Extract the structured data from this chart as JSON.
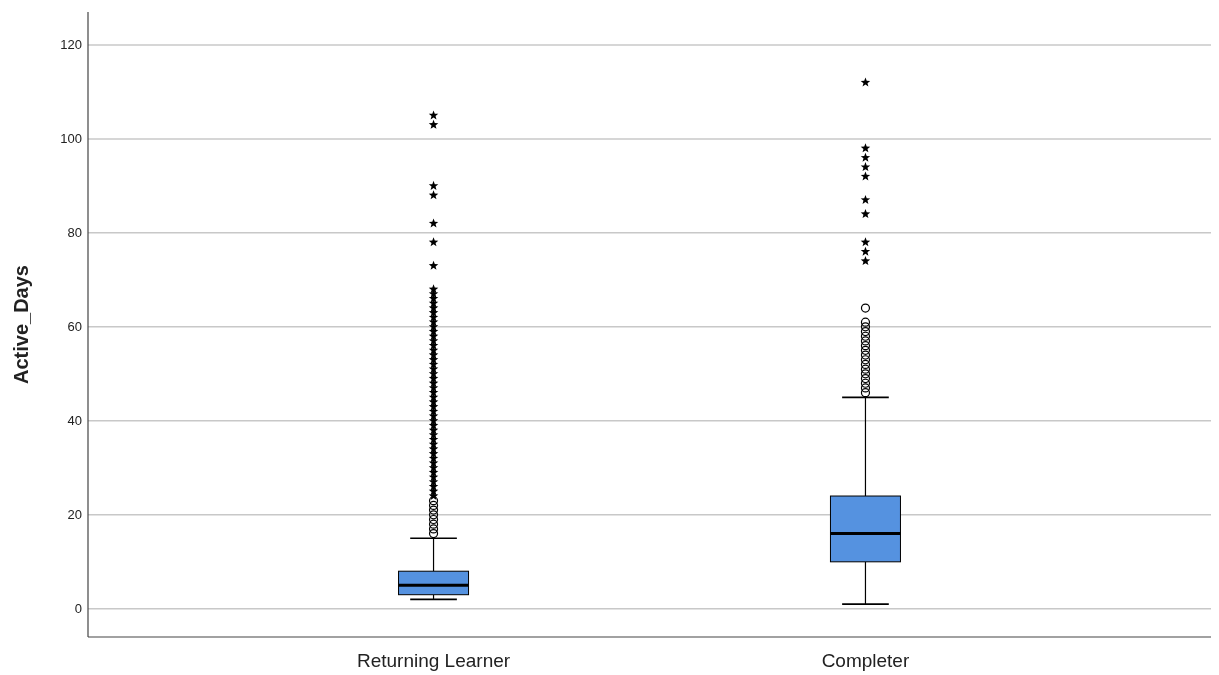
{
  "chart_data": {
    "type": "box",
    "ylabel": "Active_Days",
    "categories": [
      "Returning Learner",
      "Completer"
    ],
    "color": "#5592e0",
    "ylim": [
      -6,
      127
    ],
    "yticks": [
      0,
      20,
      40,
      60,
      80,
      100,
      120
    ],
    "grid": "y",
    "boxes": [
      {
        "low": 2,
        "q1": 3,
        "median": 5,
        "q3": 8,
        "high": 15,
        "outliers": [
          16,
          17,
          18,
          19,
          20,
          21,
          22,
          23,
          24,
          25,
          26,
          27,
          28,
          29,
          30,
          31,
          32,
          33,
          34,
          35,
          36,
          37,
          38,
          39,
          40,
          41,
          42,
          43,
          44,
          45,
          46,
          47,
          48,
          49,
          50,
          51,
          52,
          53,
          54,
          55,
          56,
          57,
          58,
          59,
          60,
          61,
          62,
          63,
          64,
          65,
          66,
          67,
          68,
          73,
          78,
          82,
          88,
          90,
          103,
          105
        ]
      },
      {
        "low": 1,
        "q1": 10,
        "median": 16,
        "q3": 24,
        "high": 45,
        "outliers": [
          46,
          47,
          48,
          49,
          50,
          51,
          52,
          53,
          54,
          55,
          56,
          57,
          58,
          59,
          60,
          61,
          64,
          74,
          76,
          78,
          84,
          87,
          92,
          94,
          96,
          98,
          112
        ]
      }
    ]
  }
}
